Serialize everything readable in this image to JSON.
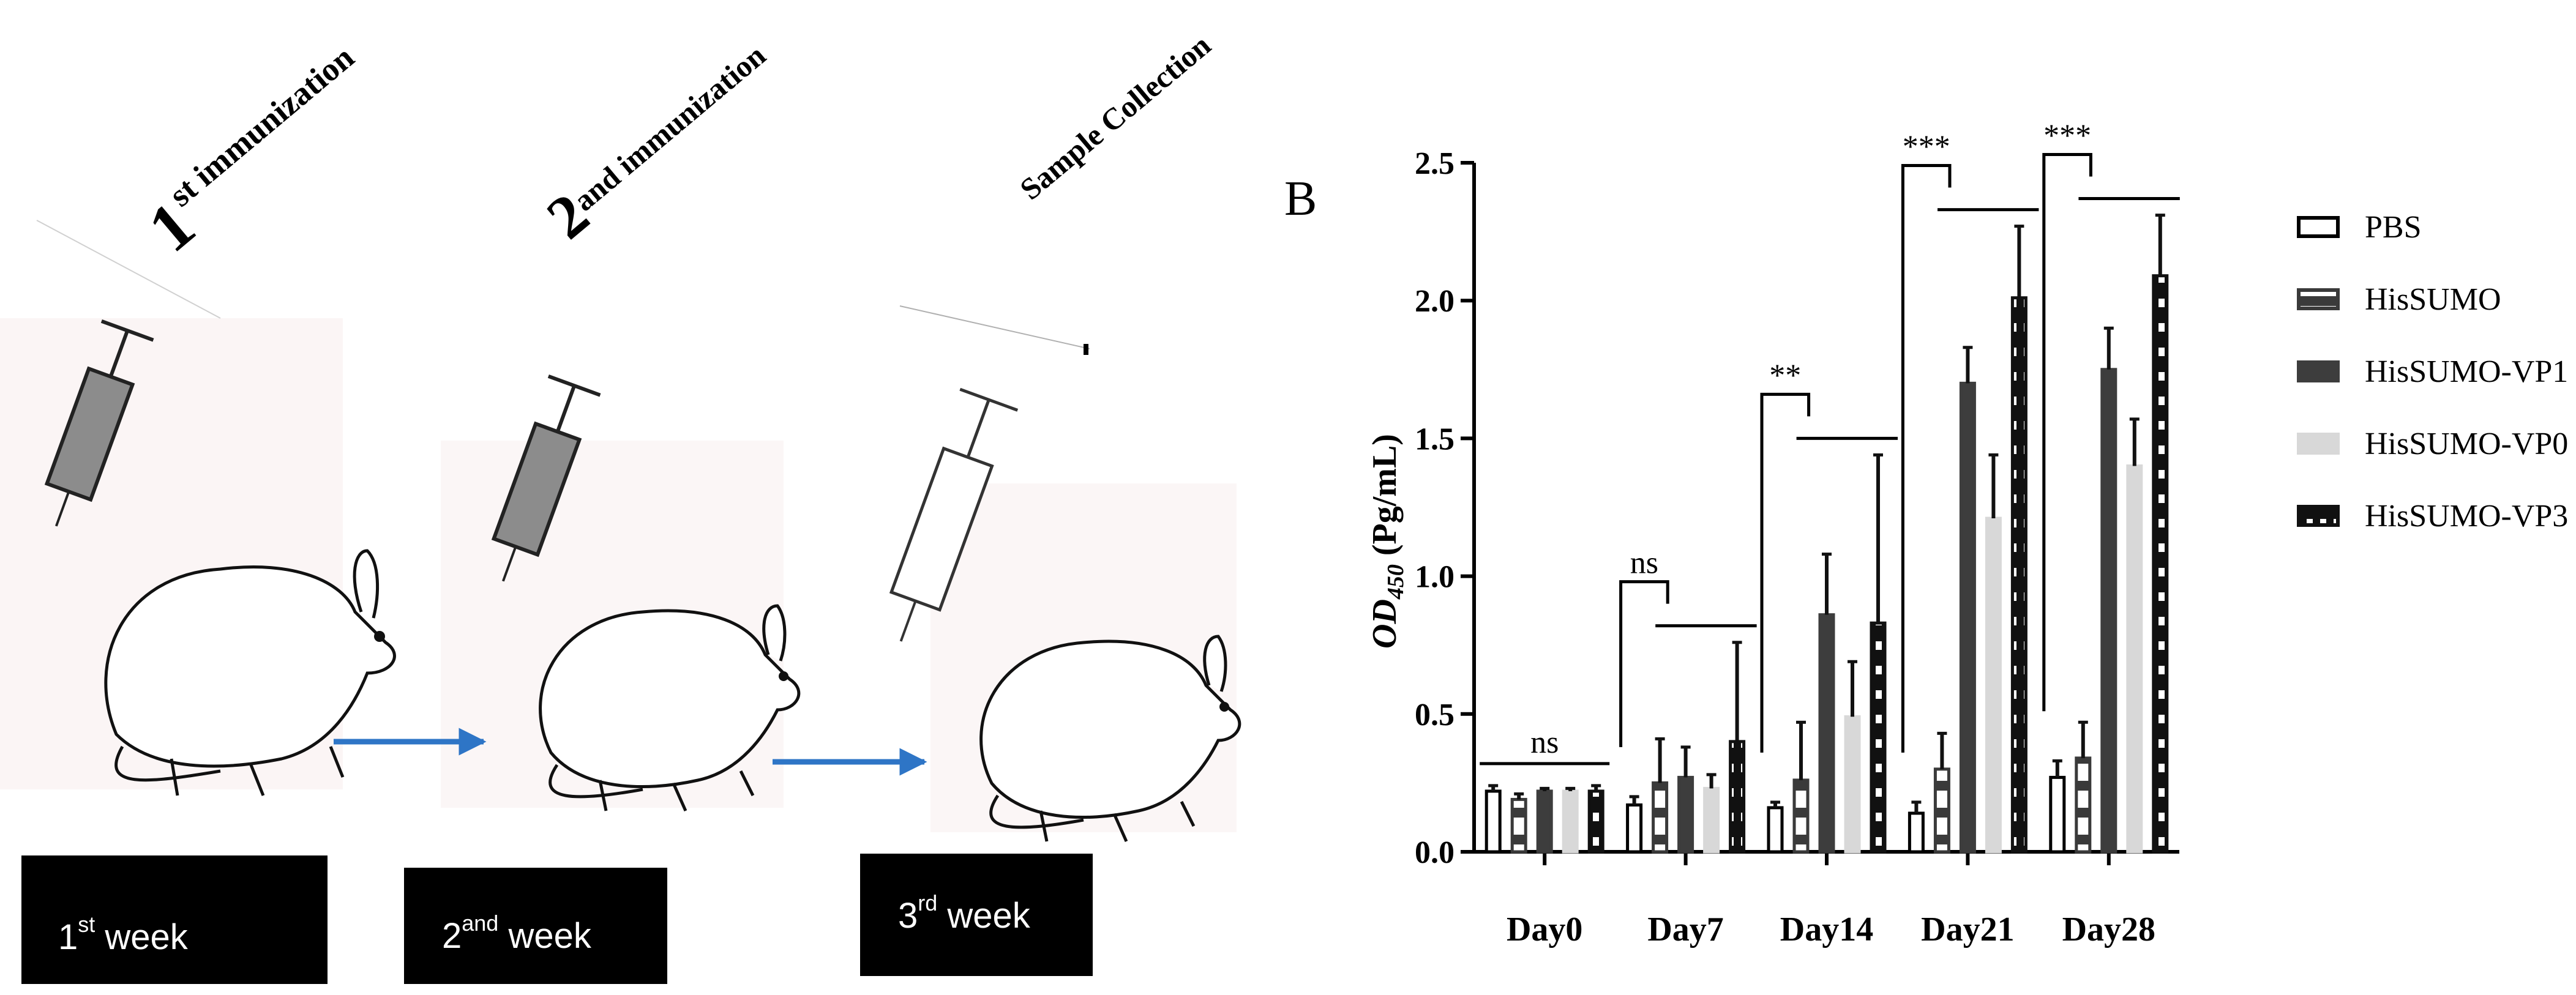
{
  "panel_a": {
    "steps": [
      {
        "number": "1",
        "title": "st immunization"
      },
      {
        "number": "2",
        "title": "and immunization"
      },
      {
        "number": "",
        "title": "Sample Collection"
      }
    ],
    "weeks": [
      {
        "num": "1",
        "sup": "st",
        "rest": "week"
      },
      {
        "num": "2",
        "sup": "and",
        "rest": "week"
      },
      {
        "num": "3",
        "sup": "rd",
        "rest": "week"
      }
    ],
    "colors": {
      "arrow": "#2e75c6",
      "box": "#000000",
      "syringe_fill": "#8c8c8c"
    }
  },
  "panel_b": {
    "label": "B",
    "ylabel_italic": "OD",
    "ylabel_sub": "450",
    "ylabel_unit": "(Pg/mL)"
  },
  "chart_data": {
    "type": "bar",
    "title": "",
    "xlabel": "",
    "ylabel": "OD 450 (Pg/mL)",
    "ylim": [
      0,
      2.5
    ],
    "yticks": [
      "0.0",
      "0.5",
      "1.0",
      "1.5",
      "2.0",
      "2.5"
    ],
    "categories": [
      "Day0",
      "Day7",
      "Day14",
      "Day21",
      "Day28"
    ],
    "series": [
      {
        "name": "PBS",
        "style": "open",
        "values": [
          0.22,
          0.17,
          0.16,
          0.14,
          0.27
        ],
        "errors": [
          0.02,
          0.03,
          0.02,
          0.04,
          0.06
        ]
      },
      {
        "name": "HisSUMO",
        "style": "hatched",
        "values": [
          0.19,
          0.25,
          0.26,
          0.3,
          0.34
        ],
        "errors": [
          0.02,
          0.16,
          0.21,
          0.13,
          0.13
        ]
      },
      {
        "name": "HisSUMO-VP1",
        "style": "dark",
        "values": [
          0.22,
          0.27,
          0.86,
          1.7,
          1.75
        ],
        "errors": [
          0.01,
          0.11,
          0.22,
          0.13,
          0.15
        ]
      },
      {
        "name": "HisSUMO-VP0",
        "style": "light",
        "values": [
          0.22,
          0.23,
          0.49,
          1.21,
          1.4
        ],
        "errors": [
          0.01,
          0.05,
          0.2,
          0.23,
          0.17
        ]
      },
      {
        "name": "HisSUMO-VP3",
        "style": "dotted",
        "values": [
          0.22,
          0.4,
          0.83,
          2.01,
          2.09
        ],
        "errors": [
          0.02,
          0.36,
          0.61,
          0.26,
          0.22
        ]
      }
    ],
    "significance": [
      "ns",
      "ns",
      "**",
      "***",
      "***"
    ],
    "legend": {
      "position": "right",
      "entries": [
        "PBS",
        "HisSUMO",
        "HisSUMO-VP1",
        "HisSUMO-VP0",
        "HisSUMO-VP3"
      ]
    },
    "grid": false
  }
}
